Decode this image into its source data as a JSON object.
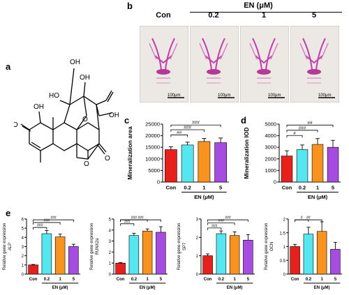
{
  "panel_labels": {
    "a": "a",
    "b": "b",
    "c": "c",
    "d": "d",
    "e": "e"
  },
  "panel_b": {
    "group_label": "EN (μM)",
    "columns": [
      "Con",
      "0.2",
      "1",
      "5"
    ],
    "scale_bar": "100μm"
  },
  "colors": {
    "Con": "#e8201c",
    "0.2": "#55e6ef",
    "1": "#f7931e",
    "5": "#a64ce0"
  },
  "chart_data": [
    {
      "id": "c",
      "type": "bar",
      "categories": [
        "Con",
        "0.2",
        "1",
        "5"
      ],
      "values": [
        14000,
        16000,
        17500,
        17000
      ],
      "errors": [
        1200,
        1200,
        1300,
        2000
      ],
      "ylabel": "Mineralization area",
      "xlabel": "EN (μM)",
      "ylim": [
        0,
        25000
      ],
      "yticks": [
        0,
        5000,
        10000,
        15000,
        20000,
        25000
      ],
      "sig": [
        {
          "to": 1,
          "label": "##"
        },
        {
          "to": 2,
          "label": "###"
        },
        {
          "to": 3,
          "label": "###"
        }
      ]
    },
    {
      "id": "d",
      "type": "bar",
      "categories": [
        "Con",
        "0.2",
        "1",
        "5"
      ],
      "values": [
        2250,
        2800,
        3250,
        3000
      ],
      "errors": [
        450,
        400,
        500,
        600
      ],
      "ylabel": "Mineralization IOD",
      "xlabel": "EN (μM)",
      "ylim": [
        0,
        5000
      ],
      "yticks": [
        0,
        1000,
        2000,
        3000,
        4000,
        5000
      ],
      "sig": [
        {
          "to": 1,
          "label": "#"
        },
        {
          "to": 2,
          "label": "###"
        },
        {
          "to": 3,
          "label": "##"
        }
      ]
    },
    {
      "id": "e1",
      "type": "bar",
      "categories": [
        "Con",
        "0.2",
        "1",
        "5"
      ],
      "values": [
        1.0,
        4.4,
        4.05,
        3.0
      ],
      "errors": [
        0.05,
        0.35,
        0.3,
        0.25
      ],
      "ylabel": "Relative gene expression",
      "ylabel2": "ALP",
      "xlabel": "EN (μM)",
      "ylim": [
        0,
        6
      ],
      "yticks": [
        0,
        1,
        2,
        3,
        4,
        5,
        6
      ],
      "sig": [
        {
          "to": 1,
          "label": "###"
        },
        {
          "to": 2,
          "label": "###"
        },
        {
          "to": 3,
          "label": "###"
        }
      ]
    },
    {
      "id": "e2",
      "type": "bar",
      "categories": [
        "Con",
        "0.2",
        "1",
        "5"
      ],
      "values": [
        1.0,
        3.5,
        3.9,
        3.8
      ],
      "errors": [
        0.05,
        0.2,
        0.2,
        0.5
      ],
      "ylabel": "Relative gene expression",
      "ylabel2": "RUNX2a",
      "xlabel": "EN (μM)",
      "ylim": [
        0,
        5
      ],
      "yticks": [
        0,
        1,
        2,
        3,
        4,
        5
      ],
      "sig": [
        {
          "to": 1,
          "label": "###"
        },
        {
          "to": 2,
          "label": "###"
        },
        {
          "to": 3,
          "label": "###"
        }
      ]
    },
    {
      "id": "e3",
      "type": "bar",
      "categories": [
        "Con",
        "0.2",
        "1",
        "5"
      ],
      "values": [
        1.0,
        2.2,
        2.1,
        1.85
      ],
      "errors": [
        0.1,
        0.15,
        0.2,
        0.3
      ],
      "ylabel": "Relative gene expression",
      "ylabel2": "SP7",
      "xlabel": "EN (μM)",
      "ylim": [
        0,
        3
      ],
      "yticks": [
        0,
        1,
        2,
        3
      ],
      "sig": [
        {
          "to": 1,
          "label": "###"
        },
        {
          "to": 2,
          "label": "###"
        },
        {
          "to": 3,
          "label": "###"
        }
      ]
    },
    {
      "id": "e4",
      "type": "bar",
      "categories": [
        "Con",
        "0.2",
        "1",
        "5"
      ],
      "values": [
        1.0,
        1.45,
        1.55,
        0.9
      ],
      "errors": [
        0.08,
        0.25,
        0.35,
        0.25
      ],
      "ylabel": "Relative gene expression",
      "ylabel2": "OCN",
      "xlabel": "EN (μM)",
      "ylim": [
        0,
        2.0
      ],
      "yticks": [
        0.0,
        0.5,
        1.0,
        1.5,
        2.0
      ],
      "sig": [
        {
          "to": 1,
          "label": "#"
        },
        {
          "to": 2,
          "label": "##"
        }
      ]
    }
  ]
}
